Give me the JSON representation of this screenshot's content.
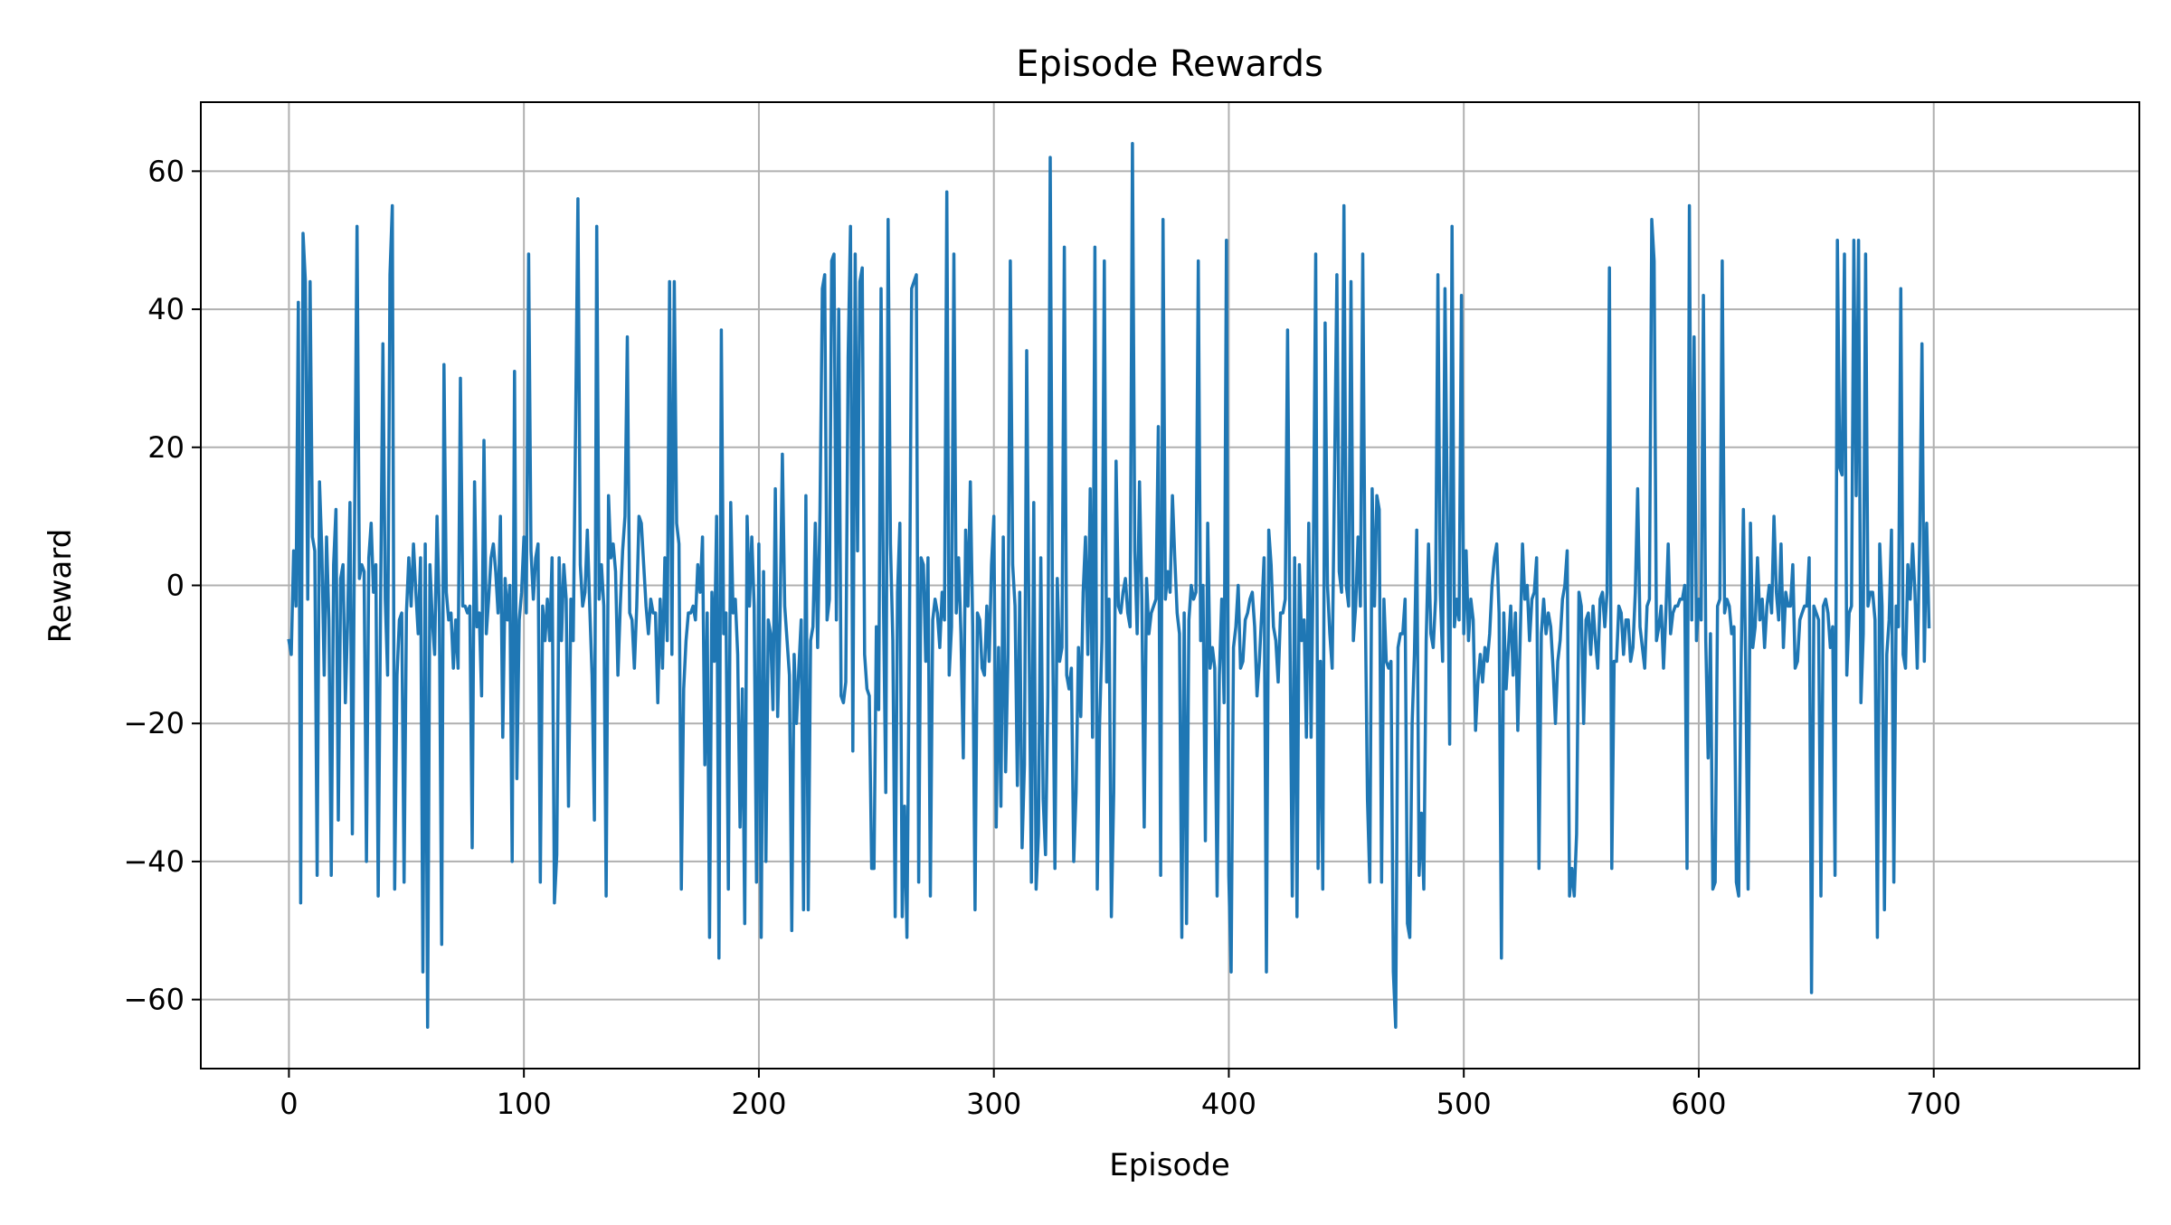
{
  "chart_data": {
    "type": "line",
    "title": "Episode Rewards",
    "xlabel": "Episode",
    "ylabel": "Reward",
    "xlim": [
      -37.5,
      787.5
    ],
    "ylim": [
      -70,
      70
    ],
    "xticks": [
      0,
      100,
      200,
      300,
      400,
      500,
      600,
      700
    ],
    "yticks": [
      -60,
      -40,
      -20,
      0,
      20,
      40,
      60
    ],
    "ytick_labels": [
      "−60",
      "−40",
      "−20",
      "0",
      "20",
      "40",
      "60"
    ],
    "grid": true,
    "line_color": "#1f77b4",
    "series": [
      {
        "x_start": 0,
        "x_step": 1,
        "values": [
          -8,
          -10,
          5,
          -3,
          41,
          -46,
          51,
          44,
          -2,
          44,
          7,
          5,
          -42,
          15,
          5,
          -13,
          7,
          -5,
          -42,
          3,
          11,
          -34,
          1,
          3,
          -17,
          -5,
          12,
          -36,
          11,
          52,
          1,
          3,
          2,
          -40,
          4,
          9,
          -1,
          3,
          -45,
          -3,
          35,
          -2,
          -13,
          45,
          55,
          -44,
          -13,
          -5,
          -4,
          -43,
          -4,
          4,
          -3,
          6,
          -1,
          -7,
          4,
          -56,
          6,
          -64,
          3,
          -5,
          -10,
          10,
          -4,
          -52,
          32,
          -1,
          -5,
          -4,
          -12,
          -5,
          -12,
          30,
          -3,
          -3,
          -4,
          -3,
          -38,
          15,
          -6,
          -4,
          -16,
          21,
          -7,
          -2,
          4,
          6,
          2,
          -4,
          10,
          -22,
          1,
          -5,
          0,
          -40,
          31,
          -28,
          -5,
          -1,
          7,
          -4,
          48,
          5,
          -2,
          4,
          6,
          -43,
          -3,
          -8,
          -2,
          -8,
          4,
          -46,
          -39,
          4,
          -8,
          3,
          -2,
          -32,
          -2,
          -8,
          23,
          56,
          3,
          -3,
          -1,
          8,
          -3,
          -13,
          -34,
          52,
          -2,
          3,
          -3,
          -45,
          13,
          4,
          6,
          2,
          -13,
          -3,
          5,
          10,
          36,
          -4,
          -5,
          -12,
          -3,
          10,
          9,
          3,
          -3,
          -7,
          -2,
          -4,
          -4,
          -17,
          -2,
          -12,
          4,
          -8,
          44,
          -10,
          44,
          9,
          6,
          -44,
          -15,
          -8,
          -4,
          -4,
          -3,
          -5,
          3,
          -1,
          7,
          -26,
          -4,
          -51,
          -1,
          -11,
          10,
          -54,
          37,
          -7,
          -4,
          -44,
          12,
          -4,
          -2,
          -10,
          -35,
          -15,
          -49,
          10,
          -3,
          7,
          -3,
          -43,
          6,
          -51,
          2,
          -40,
          -5,
          -7,
          -18,
          14,
          -19,
          -5,
          19,
          -3,
          -8,
          -13,
          -50,
          -10,
          -20,
          -12,
          -5,
          -47,
          13,
          -47,
          -8,
          -6,
          9,
          -9,
          11,
          43,
          45,
          -5,
          -2,
          47,
          48,
          -5,
          40,
          -16,
          -17,
          -14,
          33,
          52,
          -24,
          48,
          5,
          44,
          46,
          -10,
          -15,
          -16,
          -41,
          -41,
          -6,
          -18,
          43,
          -2,
          -30,
          53,
          6,
          -8,
          -48,
          -1,
          9,
          -48,
          -32,
          -51,
          -10,
          43,
          44,
          45,
          -43,
          4,
          3,
          -11,
          4,
          -45,
          -5,
          -2,
          -4,
          -9,
          -1,
          -5,
          57,
          -13,
          -6,
          48,
          -4,
          4,
          -7,
          -25,
          8,
          -3,
          15,
          -6,
          -47,
          -4,
          -5,
          -12,
          -13,
          -3,
          -11,
          3,
          10,
          -35,
          -9,
          -32,
          7,
          -27,
          -10,
          47,
          3,
          -3,
          -29,
          -1,
          -38,
          -26,
          34,
          -7,
          -43,
          12,
          -44,
          -36,
          4,
          -31,
          -39,
          -16,
          62,
          -6,
          -41,
          1,
          -11,
          -9,
          49,
          -13,
          -15,
          -12,
          -40,
          -30,
          -9,
          -19,
          -1,
          7,
          -10,
          14,
          -22,
          49,
          -44,
          -20,
          -8,
          47,
          -14,
          -2,
          -48,
          -30,
          18,
          -3,
          -4,
          -1,
          1,
          -4,
          -6,
          64,
          5,
          -7,
          15,
          -2,
          -35,
          1,
          -7,
          -4,
          -3,
          -2,
          23,
          -42,
          53,
          -2,
          2,
          -1,
          13,
          4,
          -4,
          -7,
          -51,
          -4,
          -49,
          -5,
          0,
          -2,
          -1,
          47,
          -8,
          0,
          -37,
          9,
          -12,
          -9,
          -12,
          -45,
          -13,
          -2,
          -17,
          50,
          -42,
          -56,
          -9,
          -6,
          0,
          -12,
          -11,
          -5,
          -4,
          -2,
          -1,
          -6,
          -16,
          -11,
          -4,
          4,
          -56,
          8,
          3,
          -6,
          -8,
          -14,
          -4,
          -4,
          -2,
          37,
          -7,
          -45,
          4,
          -48,
          3,
          -8,
          -5,
          -22,
          9,
          -22,
          6,
          48,
          -41,
          -11,
          -44,
          38,
          0,
          -7,
          -12,
          16,
          45,
          2,
          -1,
          55,
          0,
          -3,
          44,
          -8,
          -3,
          7,
          -3,
          48,
          -1,
          -31,
          -43,
          14,
          -3,
          13,
          11,
          -43,
          -2,
          -11,
          -12,
          -11,
          -56,
          -64,
          -9,
          -7,
          -7,
          -2,
          -49,
          -51,
          -20,
          -10,
          8,
          -42,
          -33,
          -44,
          -8,
          6,
          -7,
          -9,
          -2,
          45,
          -1,
          -11,
          43,
          10,
          -23,
          52,
          -6,
          -2,
          -5,
          42,
          -7,
          5,
          -8,
          -2,
          -5,
          -21,
          -14,
          -10,
          -14,
          -9,
          -11,
          -7,
          0,
          4,
          6,
          -4,
          -54,
          -4,
          -15,
          -9,
          -3,
          -13,
          -4,
          -21,
          -8,
          6,
          -2,
          0,
          -8,
          -2,
          -1,
          4,
          -41,
          -7,
          -2,
          -7,
          -4,
          -6,
          -12,
          -20,
          -11,
          -8,
          -2,
          0,
          5,
          -45,
          -41,
          -45,
          -36,
          -1,
          -3,
          -20,
          -5,
          -4,
          -10,
          -3,
          -8,
          -12,
          -2,
          -1,
          -6,
          -1,
          46,
          -41,
          -11,
          -11,
          -3,
          -4,
          -10,
          -5,
          -5,
          -11,
          -9,
          -1,
          14,
          -6,
          -9,
          -12,
          -3,
          -2,
          53,
          47,
          -8,
          -6,
          -3,
          -12,
          -4,
          6,
          -7,
          -4,
          -3,
          -3,
          -2,
          -2,
          0,
          -41,
          55,
          -5,
          36,
          -8,
          -2,
          -5,
          42,
          -8,
          -25,
          -7,
          -44,
          -43,
          -3,
          -2,
          47,
          -4,
          -2,
          -3,
          -7,
          -6,
          -43,
          -45,
          -12,
          11,
          -12,
          -44,
          9,
          -9,
          -6,
          4,
          -5,
          -2,
          -9,
          -3,
          0,
          -4,
          10,
          -1,
          -5,
          6,
          -9,
          -1,
          -3,
          -3,
          3,
          -12,
          -11,
          -5,
          -4,
          -3,
          -3,
          4,
          -59,
          -3,
          -4,
          -5,
          -45,
          -3,
          -2,
          -4,
          -9,
          -6,
          -42,
          50,
          17,
          16,
          48,
          -13,
          -4,
          -3,
          50,
          13,
          50,
          -17,
          -7,
          48,
          -3,
          -1,
          -1,
          -5,
          -51,
          6,
          -3,
          -47,
          -10,
          -5,
          8,
          -43,
          -3,
          -6,
          43,
          -10,
          -12,
          3,
          -2,
          6,
          -1,
          -12,
          6,
          35,
          -11,
          9,
          -6
        ]
      }
    ]
  }
}
